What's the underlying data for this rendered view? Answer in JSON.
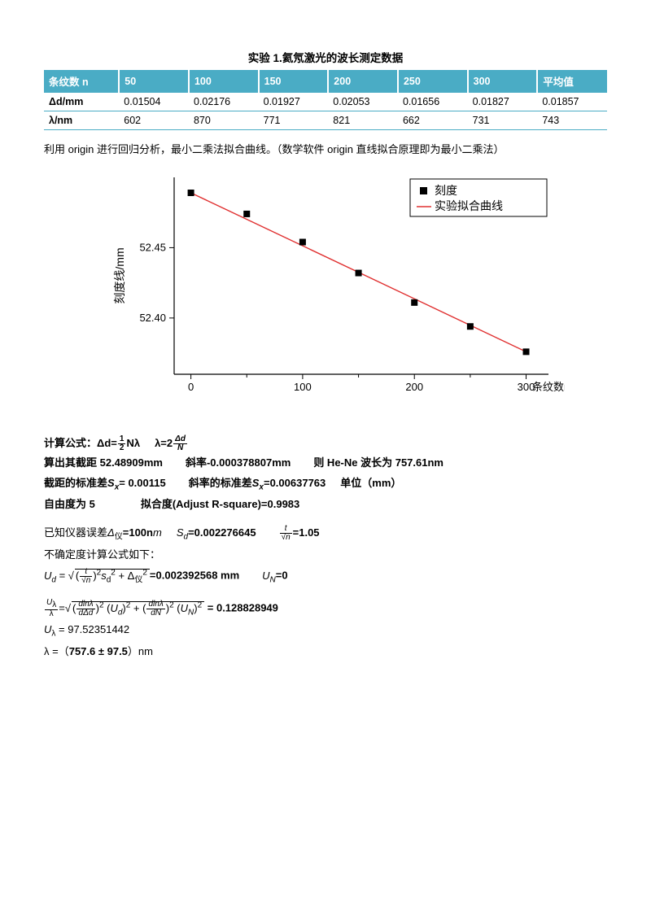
{
  "title": "实验 1.氦氖激光的波长测定数据",
  "table": {
    "headers": [
      "条纹数 n",
      "50",
      "100",
      "150",
      "200",
      "250",
      "300",
      "平均值"
    ],
    "rows": [
      [
        "Δd/mm",
        "0.01504",
        "0.02176",
        "0.01927",
        "0.02053",
        "0.01656",
        "0.01827",
        "0.01857"
      ],
      [
        "λ/nm",
        "602",
        "870",
        "771",
        "821",
        "662",
        "731",
        "743"
      ]
    ],
    "header_bg": "#4aacc5",
    "border_color": "#4aacc5"
  },
  "description": "利用 origin 进行回归分析，最小二乘法拟合曲线。（数学软件 origin 直线拟合原理即为最小二乘法）",
  "chart": {
    "type": "scatter+line",
    "x_label": "条纹数n/1次",
    "y_label": "刻度线/mm",
    "legend": {
      "series1": "刻度",
      "series2": "实验拟合曲线"
    },
    "x_ticks": [
      0,
      100,
      200,
      300
    ],
    "y_ticks": [
      52.4,
      52.45
    ],
    "points_x": [
      0,
      50,
      100,
      150,
      200,
      250,
      300
    ],
    "points_y": [
      52.489,
      52.474,
      52.454,
      52.432,
      52.411,
      52.394,
      52.376
    ],
    "line_color": "#e03030",
    "marker_color": "#000000",
    "axis_color": "#000000",
    "plot_bg": "#ffffff",
    "y_min": 52.36,
    "y_max": 52.5,
    "x_min": -15,
    "x_max": 320
  },
  "calc": {
    "line1_a": "计算公式：Δd=",
    "line1_frac1_n": "1",
    "line1_frac1_d": "2",
    "line1_b": "Nλ",
    "line1_c": "λ=2",
    "line1_frac2_n": "Δd",
    "line1_frac2_d": "N",
    "line2": "算出其截距 52.48909mm",
    "line2b": "斜率-0.000378807mm",
    "line2c": "则 He-Ne 波长为 757.61nm",
    "line3": "截距的标准差",
    "line3v": "= 0.00115",
    "line3b": "斜率的标准差",
    "line3bv": "=0.00637763",
    "line3u": "单位（mm）",
    "line4": "自由度为 5",
    "line4b": "拟合度(Adjust R-square)=0.9983",
    "line5": "已知仪器误差",
    "line5v": "=100n",
    "line5b": "=0.002276645",
    "line5c": "=1.05",
    "line6": "不确定度计算公式如下：",
    "ud_val": "=0.002392568 mm",
    "un_val": "=0",
    "ratio_val": "= 0.128828949",
    "ulambda_val": "= 97.52351442",
    "final_a": "λ =（",
    "final_b": "757.6 ± 97.5",
    "final_c": "）nm",
    "sym_Sx": "S",
    "sym_x": "x",
    "sym_Sd": "S",
    "sym_d": "d",
    "sym_delta": "Δ",
    "sym_yi": "仪",
    "sym_m": "m",
    "sym_Ud": "U",
    "sym_UN": "U",
    "sym_N": "N",
    "sym_Ul": "U",
    "sym_lambda": "λ",
    "sym_t": "t",
    "sym_n": "n",
    "d_dln": "dlnλ",
    "d_dDd": "dΔd",
    "d_dN": "dN"
  }
}
